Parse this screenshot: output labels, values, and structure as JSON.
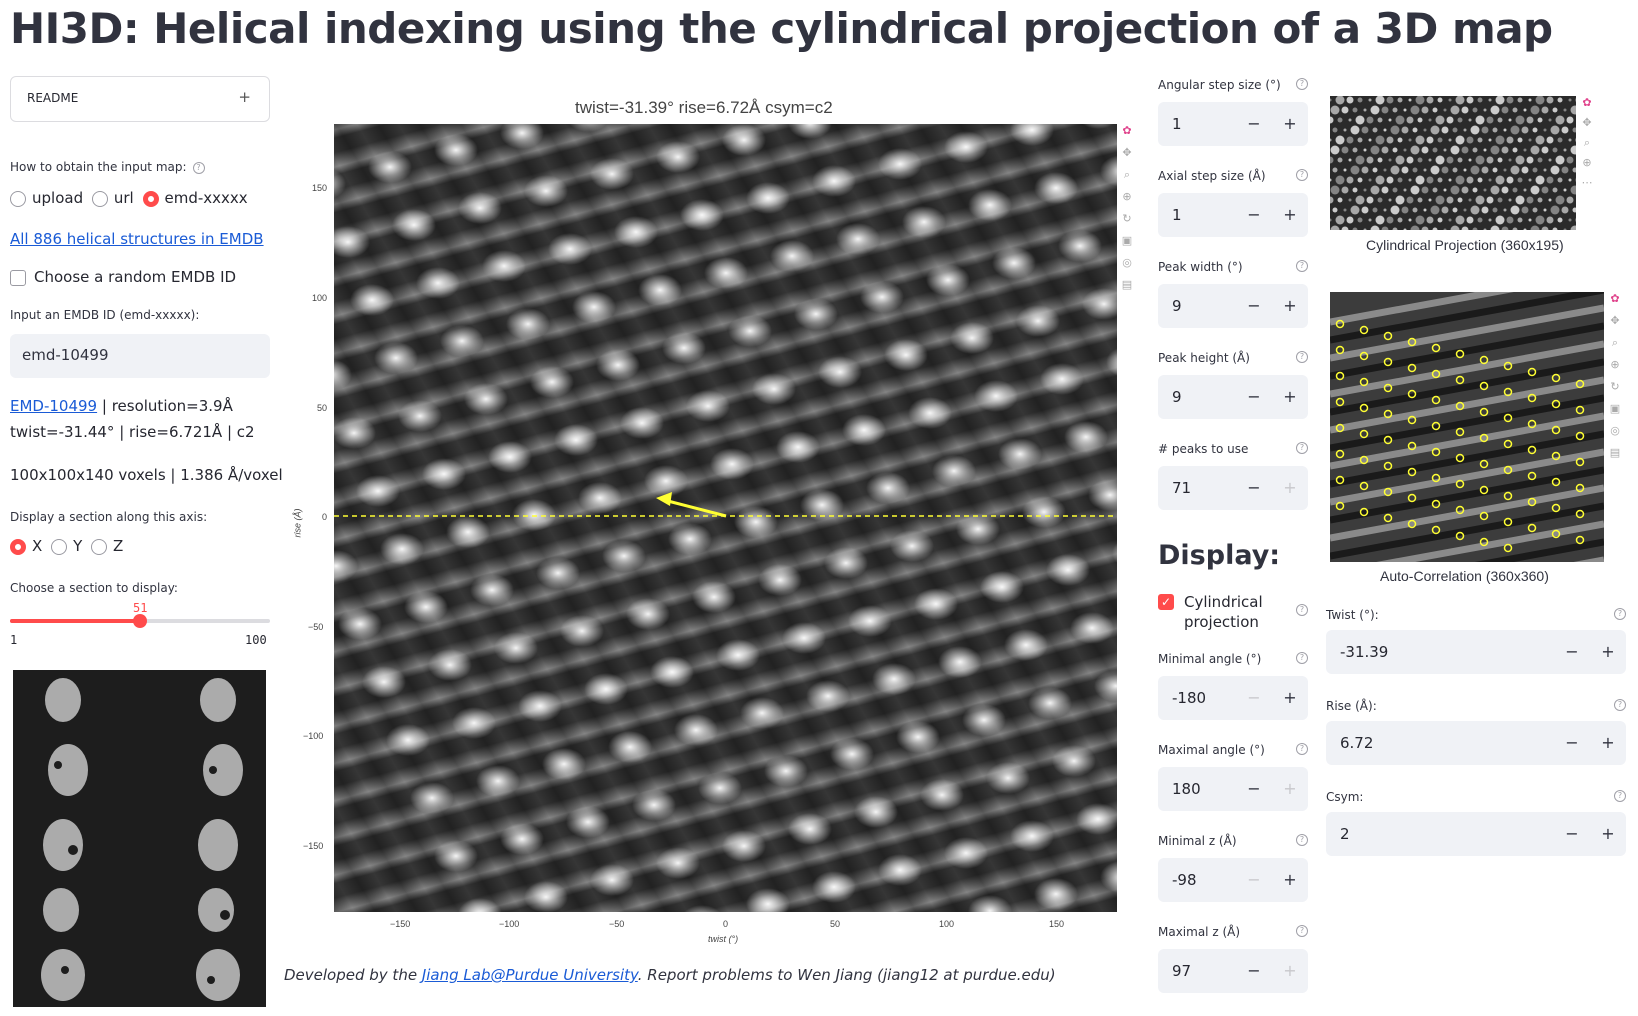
{
  "title": "HI3D: Helical indexing using the cylindrical projection of a 3D map",
  "readme": {
    "label": "README",
    "toggle": "+"
  },
  "input_source": {
    "label": "How to obtain the input map:",
    "options": [
      "upload",
      "url",
      "emd-xxxxx"
    ],
    "selected": "emd-xxxxx"
  },
  "emdb_link": "All 886 helical structures in EMDB",
  "random_checkbox": {
    "label": "Choose a random EMDB ID",
    "checked": false
  },
  "emdb_input": {
    "label": "Input an EMDB ID (emd-xxxxx):",
    "value": "emd-10499"
  },
  "map_info": {
    "id_link": "EMD-10499",
    "resolution": " | resolution=3.9Å",
    "line2": "twist=-31.44° | rise=6.721Å | c2",
    "line3": "100x100x140 voxels | 1.386 Å/voxel"
  },
  "section_axis": {
    "label": "Display a section along this axis:",
    "options": [
      "X",
      "Y",
      "Z"
    ],
    "selected": "X"
  },
  "section_slider": {
    "label": "Choose a section to display:",
    "value": "51",
    "min": "1",
    "max": "100",
    "fraction": 0.505
  },
  "plot": {
    "title": "twist=-31.39°  rise=6.72Å  csym=c2",
    "xlabel": "twist (°)",
    "ylabel": "rise (Å)",
    "xticks": [
      "−150",
      "−100",
      "−50",
      "0",
      "50",
      "100",
      "150"
    ],
    "yticks": [
      "150",
      "100",
      "50",
      "0",
      "−50",
      "−100",
      "−150"
    ]
  },
  "footer": {
    "prefix": "Developed by the ",
    "link": "Jiang Lab@Purdue University",
    "suffix": ". Report problems to Wen Jiang (jiang12 at purdue.edu)"
  },
  "controls": [
    {
      "label": "Angular step size (°)",
      "value": "1",
      "minus_disabled": false,
      "plus_disabled": false
    },
    {
      "label": "Axial step size (Å)",
      "value": "1",
      "minus_disabled": false,
      "plus_disabled": false
    },
    {
      "label": "Peak width (°)",
      "value": "9",
      "minus_disabled": false,
      "plus_disabled": false
    },
    {
      "label": "Peak height (Å)",
      "value": "9",
      "minus_disabled": false,
      "plus_disabled": false
    },
    {
      "label": "# peaks to use",
      "value": "71",
      "minus_disabled": false,
      "plus_disabled": true
    }
  ],
  "display": {
    "heading": "Display:",
    "cylindrical": {
      "label_1": "Cylindrical",
      "label_2": "projection",
      "checked": true
    },
    "controls": [
      {
        "label": "Minimal angle (°)",
        "value": "-180",
        "minus_disabled": true,
        "plus_disabled": false
      },
      {
        "label": "Maximal angle (°)",
        "value": "180",
        "minus_disabled": false,
        "plus_disabled": true
      },
      {
        "label": "Minimal z (Å)",
        "value": "-98",
        "minus_disabled": true,
        "plus_disabled": false
      },
      {
        "label": "Maximal z (Å)",
        "value": "97",
        "minus_disabled": false,
        "plus_disabled": true
      }
    ]
  },
  "right": {
    "cyl_caption": "Cylindrical Projection (360x195)",
    "acf_caption": "Auto-Correlation (360x360)",
    "twist": {
      "label": "Twist (°):",
      "value": "-31.39"
    },
    "rise": {
      "label": "Rise (Å):",
      "value": "6.72"
    },
    "csym": {
      "label": "Csym:",
      "value": "2"
    }
  },
  "colors": {
    "accent": "#ff4b4b",
    "link": "#1a5bd6",
    "marker": "#ffff33"
  }
}
